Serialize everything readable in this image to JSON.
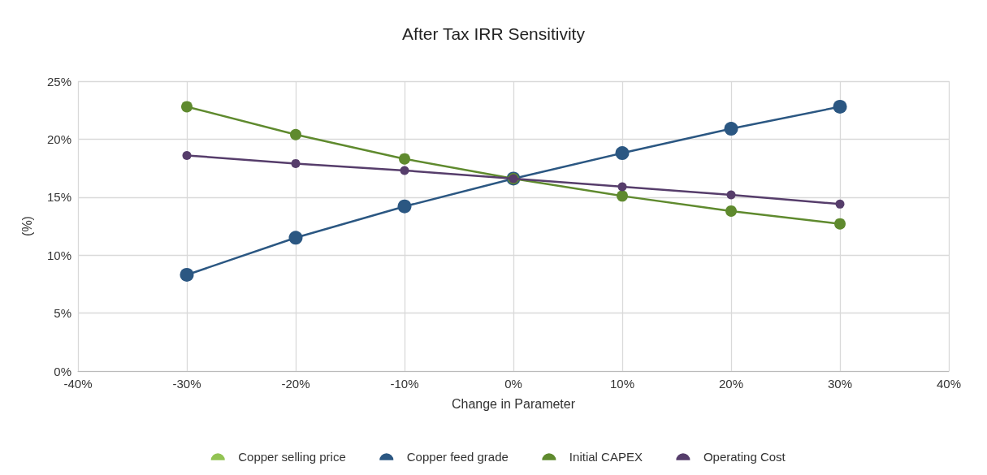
{
  "chart_data": {
    "type": "line",
    "title": "After Tax IRR Sensitivity",
    "xlabel": "Change in Parameter",
    "ylabel": "(%)",
    "x": [
      -30,
      -20,
      -10,
      0,
      10,
      20,
      30
    ],
    "series": [
      {
        "name": "Copper selling price",
        "color": "#92c353",
        "values": [
          null,
          null,
          null,
          null,
          null,
          null,
          null
        ]
      },
      {
        "name": "Copper feed grade",
        "color": "#2b5782",
        "values": [
          8.3,
          11.5,
          14.2,
          16.6,
          18.8,
          20.9,
          22.8
        ]
      },
      {
        "name": "Initial CAPEX",
        "color": "#5f8a2e",
        "values": [
          22.8,
          20.4,
          18.3,
          16.6,
          15.1,
          13.8,
          12.7
        ]
      },
      {
        "name": "Operating Cost",
        "color": "#563d6b",
        "values": [
          18.6,
          17.9,
          17.3,
          16.6,
          15.9,
          15.2,
          14.4
        ]
      }
    ],
    "xlim": [
      -40,
      40
    ],
    "xticks": [
      {
        "value": -40,
        "label": "-40%"
      },
      {
        "value": -30,
        "label": "-30%"
      },
      {
        "value": -20,
        "label": "-20%"
      },
      {
        "value": -10,
        "label": "-10%"
      },
      {
        "value": 0,
        "label": "0%"
      },
      {
        "value": 10,
        "label": "10%"
      },
      {
        "value": 20,
        "label": "20%"
      },
      {
        "value": 30,
        "label": "30%"
      },
      {
        "value": 40,
        "label": "40%"
      }
    ],
    "ylim": [
      0,
      25
    ],
    "yticks": [
      {
        "value": 0,
        "label": "0%"
      },
      {
        "value": 5,
        "label": "5%"
      },
      {
        "value": 10,
        "label": "10%"
      },
      {
        "value": 15,
        "label": "15%"
      },
      {
        "value": 20,
        "label": "20%"
      },
      {
        "value": 25,
        "label": "25%"
      }
    ],
    "grid": true,
    "legend": "bottom",
    "marker": "circle",
    "line_style": "solid"
  }
}
